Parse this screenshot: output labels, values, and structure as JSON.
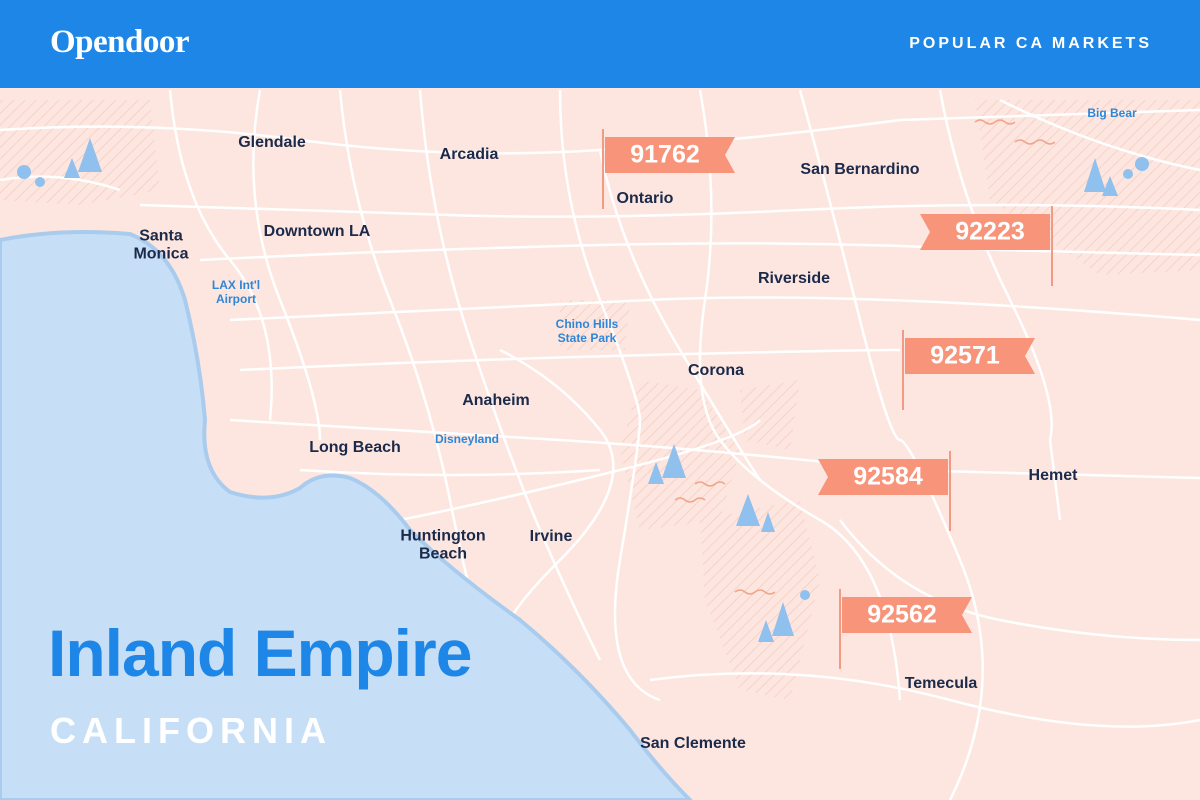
{
  "header": {
    "brand": "Opendoor",
    "tagline": "POPULAR CA MARKETS"
  },
  "cities": [
    "Glendale",
    "Arcadia",
    "Ontario",
    "San Bernardino",
    "Downtown LA",
    "Santa Monica",
    "Riverside",
    "Corona",
    "Anaheim",
    "Long Beach",
    "Huntington Beach",
    "Irvine",
    "Hemet",
    "Temecula",
    "San Clemente"
  ],
  "landmarks": [
    "Big Bear",
    "LAX Int'l Airport",
    "Chino Hills State Park",
    "Disneyland"
  ],
  "zip_flags": [
    "91762",
    "92223",
    "92571",
    "92584",
    "92562"
  ],
  "title": "Inland Empire",
  "subtitle": "CALIFORNIA"
}
